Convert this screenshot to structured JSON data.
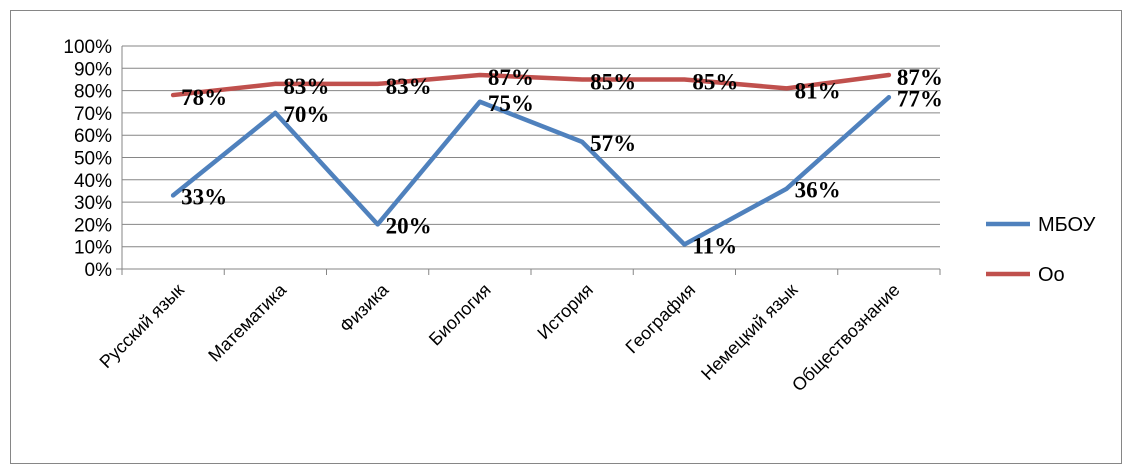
{
  "chart_data": {
    "type": "line",
    "categories": [
      "Русский язык",
      "Математика",
      "Физика",
      "Биология",
      "История",
      "География",
      "Немецкий язык",
      "Обществознание"
    ],
    "series": [
      {
        "name": "МБОУ",
        "values": [
          33,
          70,
          20,
          75,
          57,
          11,
          36,
          77
        ],
        "color": "#4F81BD",
        "labels": [
          "33%",
          "70%",
          "20%",
          "75%",
          "57%",
          "11%",
          "36%",
          "77%"
        ]
      },
      {
        "name": "Оо",
        "values": [
          78,
          83,
          83,
          87,
          85,
          85,
          81,
          87
        ],
        "color": "#C0504D",
        "labels": [
          "78%",
          "83%",
          "83%",
          "87%",
          "85%",
          "85%",
          "81%",
          "87%"
        ]
      }
    ],
    "y_ticks": [
      "0%",
      "10%",
      "20%",
      "30%",
      "40%",
      "50%",
      "60%",
      "70%",
      "80%",
      "90%",
      "100%"
    ],
    "ylim": [
      0,
      100
    ],
    "grid": true,
    "legend": "right",
    "title": "",
    "xlabel": "",
    "ylabel": ""
  }
}
